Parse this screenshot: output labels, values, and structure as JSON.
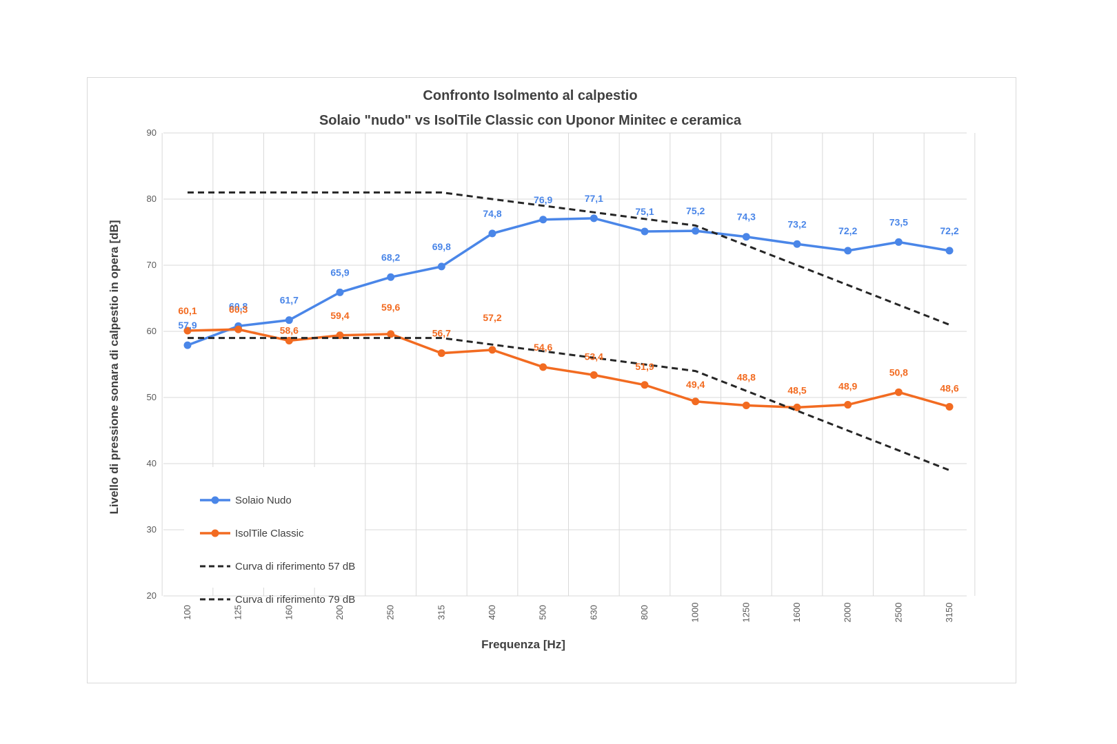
{
  "chart_data": {
    "type": "line",
    "title": "Confronto Isolmento al calpestio",
    "subtitle": "Solaio \"nudo\" vs IsolTile Classic con Uponor Minitec e ceramica",
    "xlabel": "Frequenza [Hz]",
    "ylabel": "Livello di pressione sonara di calpestio in opera [dB]",
    "categories": [
      "100",
      "125",
      "160",
      "200",
      "250",
      "315",
      "400",
      "500",
      "630",
      "800",
      "1000",
      "1250",
      "1600",
      "2000",
      "2500",
      "3150"
    ],
    "ylim": [
      20,
      90
    ],
    "yticks": [
      "20",
      "30",
      "40",
      "50",
      "60",
      "70",
      "80",
      "90"
    ],
    "grid": true,
    "legend_position": "bottom-left",
    "series": [
      {
        "name": "Solaio Nudo",
        "color": "#4a86e8",
        "style": "solid-marker",
        "values": [
          57.9,
          60.8,
          61.7,
          65.9,
          68.2,
          69.8,
          74.8,
          76.9,
          77.1,
          75.1,
          75.2,
          74.3,
          73.2,
          72.2,
          73.5,
          72.2
        ],
        "labels": [
          "57,9",
          "60,8",
          "61,7",
          "65,9",
          "68,2",
          "69,8",
          "74,8",
          "76,9",
          "77,1",
          "75,1",
          "75,2",
          "74,3",
          "73,2",
          "72,2",
          "73,5",
          "72,2"
        ]
      },
      {
        "name": "IsolTile Classic",
        "color": "#f26b21",
        "style": "solid-marker",
        "values": [
          60.1,
          60.3,
          58.6,
          59.4,
          59.6,
          56.7,
          57.2,
          54.6,
          53.4,
          51.9,
          49.4,
          48.8,
          48.5,
          48.9,
          50.8,
          48.6
        ],
        "labels": [
          "60,1",
          "60,3",
          "58,6",
          "59,4",
          "59,6",
          "56,7",
          "57,2",
          "54,6",
          "53,4",
          "51,9",
          "49,4",
          "48,8",
          "48,5",
          "48,9",
          "50,8",
          "48,6"
        ]
      },
      {
        "name": "Curva di riferimento 57 dB",
        "color": "#262626",
        "style": "dashed",
        "values": [
          59,
          59,
          59,
          59,
          59,
          59,
          58,
          57,
          56,
          55,
          54,
          51,
          48,
          45,
          42,
          39
        ]
      },
      {
        "name": "Curva di riferimento 79 dB",
        "color": "#262626",
        "style": "dashed",
        "values": [
          81,
          81,
          81,
          81,
          81,
          81,
          80,
          79,
          78,
          77,
          76,
          73,
          70,
          67,
          64,
          61
        ]
      }
    ]
  }
}
